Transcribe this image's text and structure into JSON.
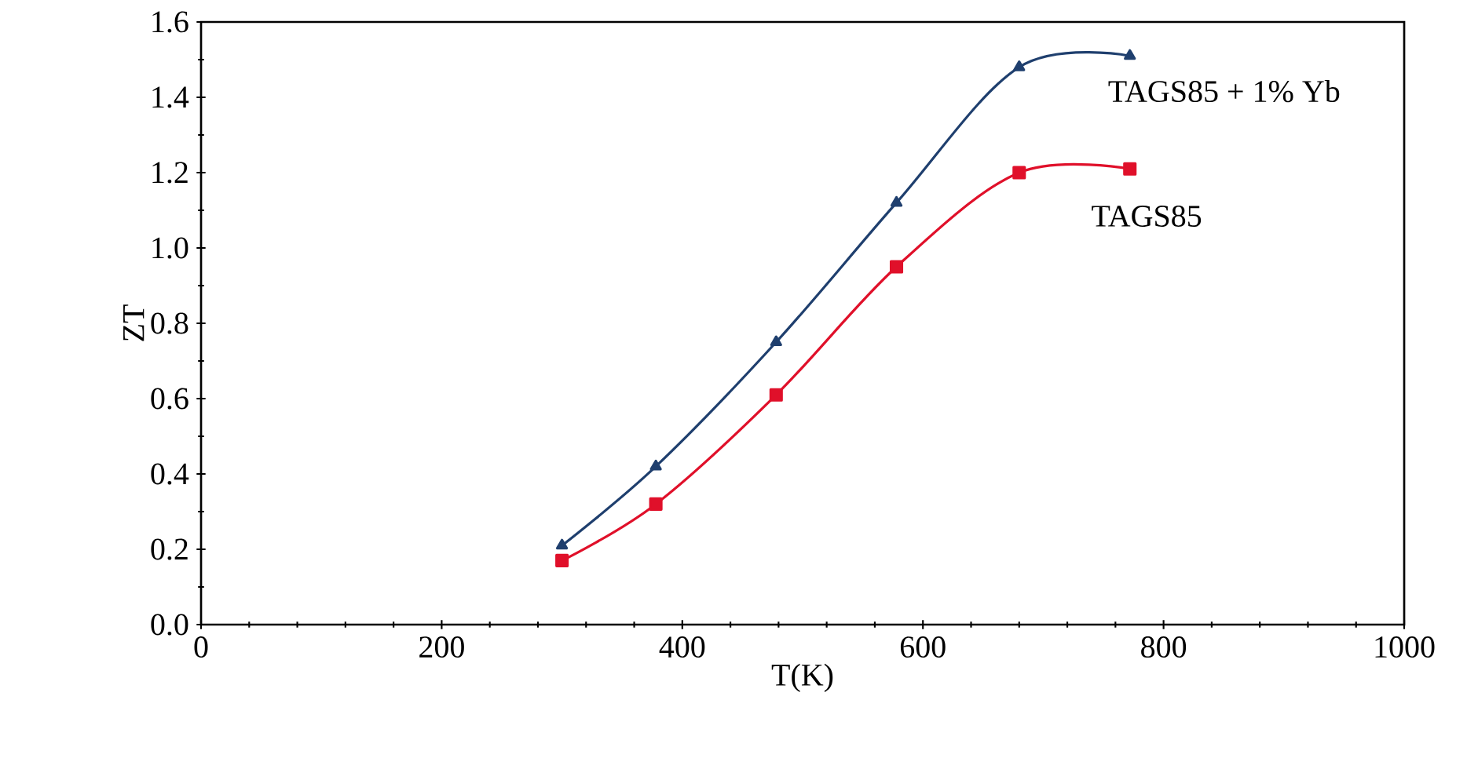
{
  "chart_data": {
    "type": "line",
    "xlabel": "T(K)",
    "ylabel": "ZT",
    "xlim": [
      0,
      1000
    ],
    "xticks": [
      0,
      200,
      400,
      600,
      800,
      1000
    ],
    "ylim": [
      0,
      1.6
    ],
    "yticks": [
      {
        "value": 0,
        "label": "0.0"
      },
      0.2,
      0.4,
      0.6,
      0.8,
      {
        "value": 1,
        "label": "1.0"
      },
      1.2,
      1.4,
      1.6
    ],
    "grid": false,
    "legend": false,
    "series": [
      {
        "name": "TAGS85 + 1% Yb",
        "color": "#1f3f6e",
        "marker": "triangle",
        "x": [
          300,
          378,
          478,
          578,
          680,
          772
        ],
        "values": [
          0.21,
          0.42,
          0.75,
          1.12,
          1.48,
          1.51
        ]
      },
      {
        "name": "TAGS85",
        "color": "#e0102a",
        "marker": "square",
        "x": [
          300,
          378,
          478,
          578,
          680,
          772
        ],
        "values": [
          0.17,
          0.32,
          0.61,
          0.95,
          1.2,
          1.21
        ]
      }
    ]
  }
}
